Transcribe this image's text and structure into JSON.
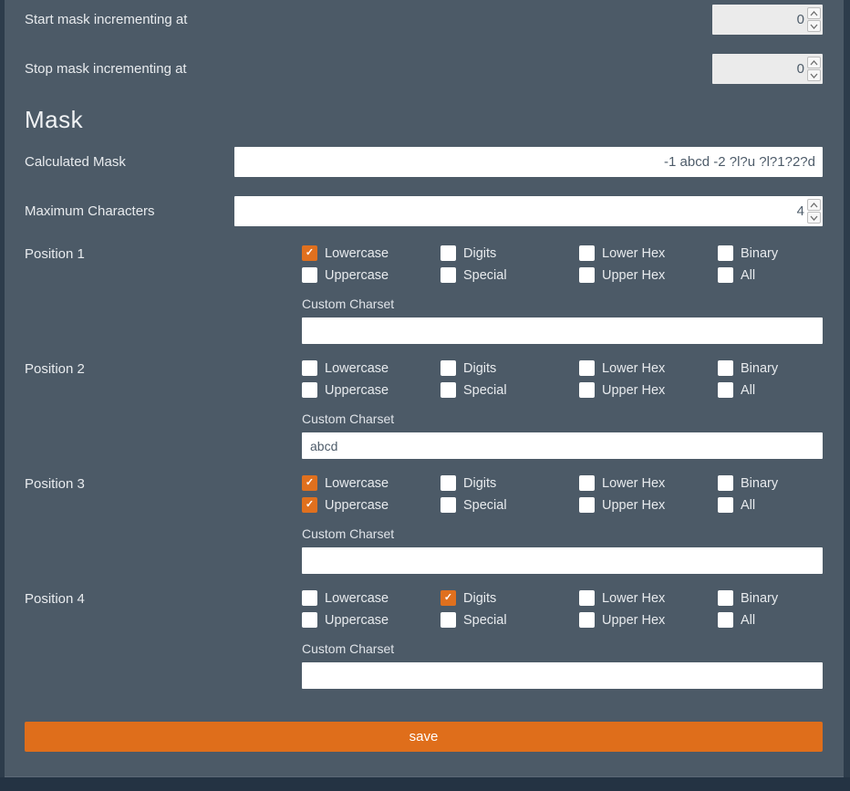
{
  "theme": {
    "panel_bg": "#4c5a67",
    "page_edge_bg": "#2d3c4b",
    "bottom_strip_bg": "#243343",
    "accent_orange": "#e0701e",
    "save_orange": "#df6e1b",
    "disabled_input_bg": "#ebebeb",
    "input_text": "#4e5c6a",
    "label_text": "#e8ebee"
  },
  "icons": {
    "check": "✓",
    "spinner_up": "chevron-up",
    "spinner_down": "chevron-down"
  },
  "form": {
    "start_increment": {
      "label": "Start mask incrementing at",
      "value": "0"
    },
    "stop_increment": {
      "label": "Stop mask incrementing at",
      "value": "0"
    },
    "section_title": "Mask",
    "calculated_mask": {
      "label": "Calculated Mask",
      "value": "-1 abcd -2 ?l?u ?l?1?2?d"
    },
    "maximum_characters": {
      "label": "Maximum Characters",
      "value": "4"
    },
    "charset_options": [
      "Lowercase",
      "Digits",
      "Lower Hex",
      "Binary",
      "Uppercase",
      "Special",
      "Upper Hex",
      "All"
    ],
    "custom_charset_label": "Custom Charset",
    "positions": [
      {
        "label": "Position 1",
        "checked": [
          "Lowercase"
        ],
        "custom_charset": ""
      },
      {
        "label": "Position 2",
        "checked": [],
        "custom_charset": "abcd"
      },
      {
        "label": "Position 3",
        "checked": [
          "Lowercase",
          "Uppercase"
        ],
        "custom_charset": ""
      },
      {
        "label": "Position 4",
        "checked": [
          "Digits"
        ],
        "custom_charset": ""
      }
    ],
    "save_label": "save"
  }
}
